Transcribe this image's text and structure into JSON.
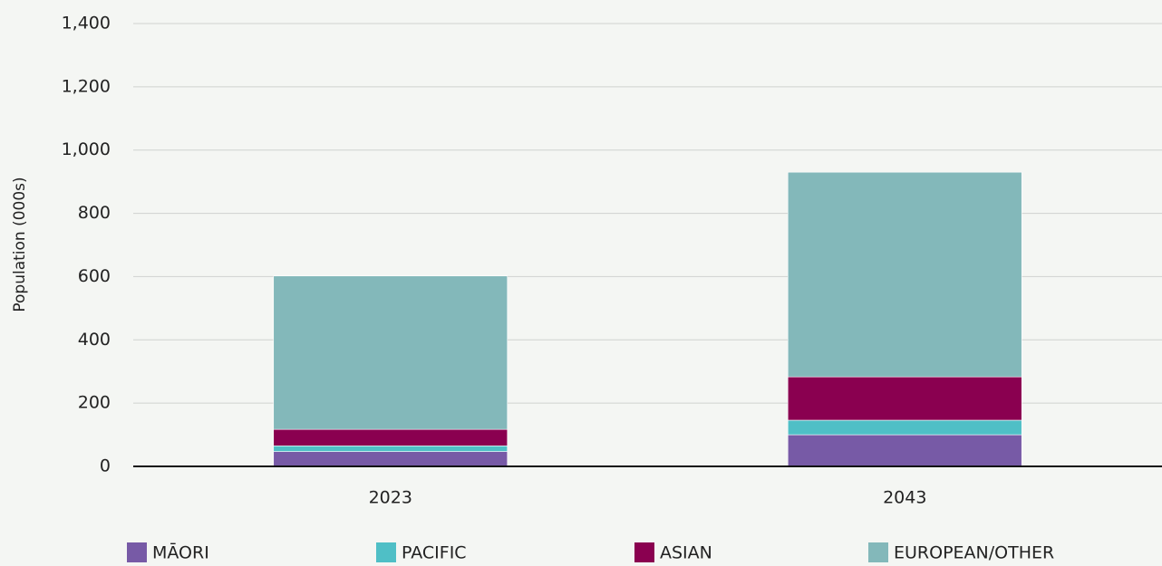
{
  "chart_data": {
    "type": "stacked_bar",
    "y_axis_label": "Population (000s)",
    "categories": [
      "2023",
      "2043"
    ],
    "series": [
      {
        "name": "MĀORI",
        "color": "#775aa6",
        "values": [
          47,
          100
        ]
      },
      {
        "name": "PACIFIC",
        "color": "#4fbfc6",
        "values": [
          18,
          46
        ]
      },
      {
        "name": "ASIAN",
        "color": "#8a0050",
        "values": [
          52,
          137
        ]
      },
      {
        "name": "EUROPEAN/OTHER",
        "color": "#83b8ba",
        "values": [
          485,
          647
        ]
      }
    ],
    "ylim": [
      0,
      1400
    ],
    "yticks": [
      0,
      200,
      400,
      600,
      800,
      {
        "value": 1000,
        "label": "1,000"
      },
      {
        "value": 1200,
        "label": "1,200"
      },
      {
        "value": 1400,
        "label": "1,400"
      }
    ],
    "grid": true
  }
}
